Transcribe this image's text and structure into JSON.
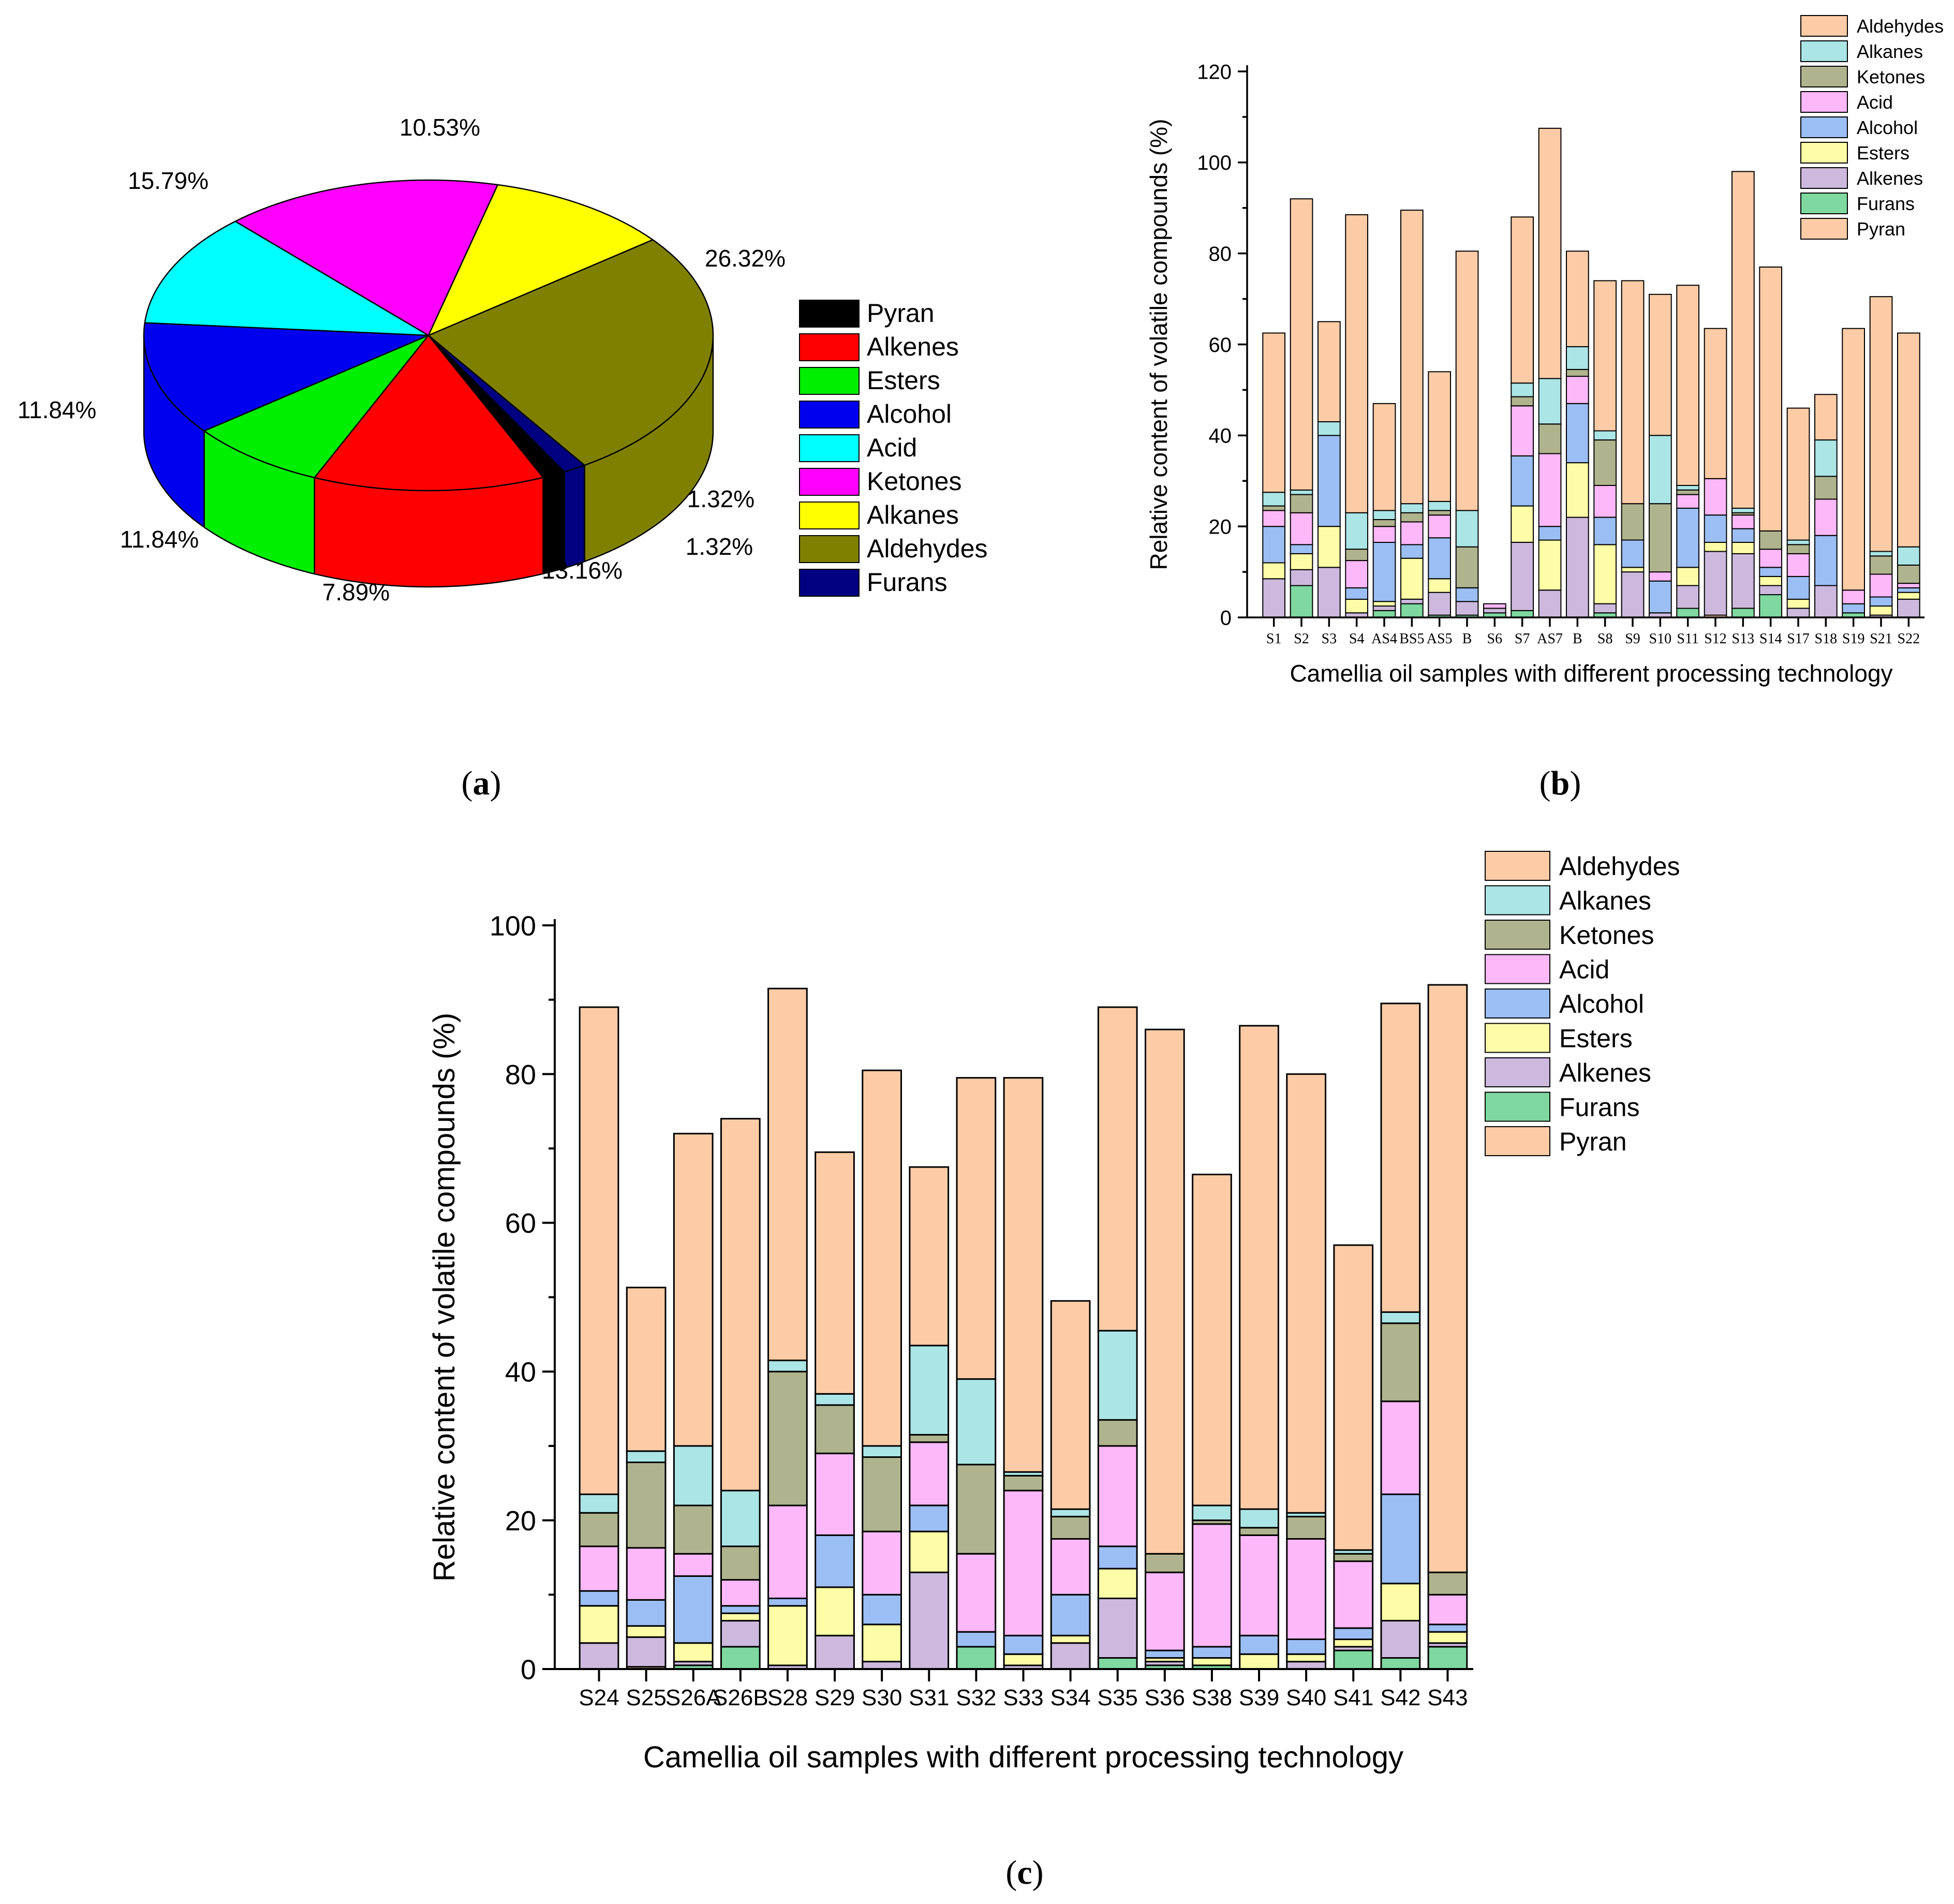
{
  "panels": {
    "a": "a",
    "b": "b",
    "c": "c"
  },
  "colors": {
    "pieA": {
      "Pyran": "#000000",
      "Alkenes": "#ff0000",
      "Esters": "#00ee00",
      "Alcohol": "#0000ee",
      "Acid": "#00ffff",
      "Ketones": "#ff00ff",
      "Alkanes": "#ffff00",
      "Aldehydes": "#808000",
      "Furans": "#000080"
    },
    "bars": {
      "Aldehydes": "#fdcca6",
      "Alkanes": "#abe5e6",
      "Ketones": "#b0b48e",
      "Acid": "#fcb8f8",
      "Alcohol": "#9bbef4",
      "Esters": "#fdfda8",
      "Alkenes": "#cdb9de",
      "Furans": "#7fd8a0",
      "Pyran": "#fdcca6"
    }
  },
  "chart_data": [
    {
      "id": "a",
      "type": "pie",
      "title": "",
      "categories": [
        "Aldehydes",
        "Furans",
        "Pyran",
        "Alkenes",
        "Esters",
        "Alcohol",
        "Acid",
        "Ketones",
        "Alkanes"
      ],
      "values": [
        26.32,
        1.32,
        1.32,
        13.16,
        7.89,
        11.84,
        11.84,
        15.79,
        10.53
      ],
      "labels": [
        "26.32%",
        "1.32%",
        "1.32%",
        "13.16%",
        "7.89%",
        "11.84%",
        "11.84%",
        "15.79%",
        "10.53%"
      ],
      "legend": [
        "Pyran",
        "Alkenes",
        "Esters",
        "Alcohol",
        "Acid",
        "Ketones",
        "Alkanes",
        "Aldehydes",
        "Furans"
      ],
      "legend_position": "right"
    },
    {
      "id": "b",
      "type": "bar",
      "stacked": true,
      "title": "",
      "xlabel": "Camellia oil samples with different processing technology",
      "ylabel": "Relative content of  volatile compounds (%)",
      "ylim": [
        0,
        120
      ],
      "yticks": [
        0,
        20,
        40,
        60,
        80,
        100,
        120
      ],
      "categories": [
        "S1",
        "S2",
        "S3",
        "S4",
        "AS4",
        "BS5",
        "AS5",
        "B",
        "S6",
        "S7",
        "AS7",
        "B",
        "S8",
        "S9",
        "S10",
        "S11",
        "S12",
        "S13",
        "S14",
        "S17",
        "S18",
        "S19",
        "S21",
        "S22"
      ],
      "legend": [
        "Aldehydes",
        "Alkanes",
        "Ketones",
        "Acid",
        "Alcohol",
        "Esters",
        "Alkenes",
        "Furans",
        "Pyran"
      ],
      "legend_position": "top-right",
      "series": [
        {
          "name": "Pyran",
          "values": [
            0,
            0,
            0,
            0,
            0,
            0,
            0,
            0,
            0,
            0,
            0,
            0,
            0,
            0,
            0,
            0,
            0.5,
            0,
            0,
            0,
            0,
            0,
            0,
            0
          ]
        },
        {
          "name": "Furans",
          "values": [
            0,
            7,
            0,
            0,
            1.5,
            3,
            0.5,
            0.5,
            1,
            1.5,
            0,
            0,
            1,
            0,
            0,
            2,
            0,
            2,
            5,
            0,
            0,
            1,
            0,
            0
          ]
        },
        {
          "name": "Alkenes",
          "values": [
            8.5,
            3.5,
            11,
            1,
            1,
            1,
            5,
            3,
            1,
            15,
            6,
            22,
            2,
            10,
            1,
            5,
            14,
            12,
            2,
            2,
            7,
            0,
            0.5,
            4
          ]
        },
        {
          "name": "Esters",
          "values": [
            3.5,
            3.5,
            9,
            3,
            1,
            9,
            3,
            0,
            0,
            8,
            11,
            12,
            13,
            1,
            0,
            4,
            2,
            2.5,
            2,
            2,
            0,
            0,
            2,
            1.5
          ]
        },
        {
          "name": "Alcohol",
          "values": [
            8,
            2,
            20,
            2.5,
            13,
            3,
            9,
            3,
            0,
            11,
            3,
            13,
            6,
            6,
            7,
            13,
            6,
            3,
            2,
            5,
            11,
            2,
            2,
            1
          ]
        },
        {
          "name": "Acid",
          "values": [
            3.5,
            7,
            0,
            6,
            3.5,
            5,
            5,
            0,
            1,
            11,
            16,
            6,
            7,
            0,
            2,
            3,
            8,
            3,
            4,
            5,
            8,
            3,
            5,
            1
          ]
        },
        {
          "name": "Ketones",
          "values": [
            1,
            4,
            0,
            2.5,
            1.5,
            2,
            1,
            9,
            0,
            2,
            6.5,
            1.5,
            10,
            8,
            15,
            1,
            0,
            0.5,
            4,
            2,
            5,
            0,
            4,
            4
          ]
        },
        {
          "name": "Alkanes",
          "values": [
            3,
            1,
            3,
            8,
            2,
            2,
            2,
            8,
            0,
            3,
            10,
            5,
            2,
            0,
            15,
            1,
            0,
            1,
            0,
            1,
            8,
            0,
            1,
            4
          ]
        },
        {
          "name": "Aldehydes",
          "values": [
            35,
            64,
            22,
            65.5,
            23.5,
            64.5,
            28.5,
            57,
            0,
            36.5,
            55,
            21,
            33,
            49,
            31,
            44,
            33,
            74,
            58,
            29,
            10,
            57.5,
            56,
            47
          ]
        }
      ]
    },
    {
      "id": "c",
      "type": "bar",
      "stacked": true,
      "title": "",
      "xlabel": "Camellia oil samples with different processing technology",
      "ylabel": "Relative content of  volatile compounds (%)",
      "ylim": [
        0,
        100
      ],
      "yticks": [
        0,
        20,
        40,
        60,
        80,
        100
      ],
      "categories": [
        "S24",
        "S25",
        "S26A",
        "S26B",
        "S28",
        "S29",
        "S30",
        "S31",
        "S32",
        "S33",
        "S34",
        "S35",
        "S36",
        "S38",
        "S39",
        "S40",
        "S41",
        "S42",
        "S43"
      ],
      "legend": [
        "Aldehydes",
        "Alkanes",
        "Ketones",
        "Acid",
        "Alcohol",
        "Esters",
        "Alkenes",
        "Furans",
        "Pyran"
      ],
      "legend_position": "top-right",
      "series": [
        {
          "name": "Pyran",
          "values": [
            0,
            0.3,
            0,
            0,
            0,
            0,
            0,
            0,
            0,
            0,
            0,
            0,
            0,
            0,
            0,
            0,
            0,
            0,
            0
          ]
        },
        {
          "name": "Furans",
          "values": [
            0,
            0,
            0.5,
            3,
            0,
            0,
            0,
            0,
            3,
            0,
            0,
            1.5,
            0.5,
            0.5,
            0,
            0,
            2.5,
            1.5,
            3
          ]
        },
        {
          "name": "Alkenes",
          "values": [
            3.5,
            4,
            0.5,
            3.5,
            0.5,
            4.5,
            1,
            13,
            0,
            0.5,
            3.5,
            8,
            0.5,
            0,
            0,
            1,
            0.5,
            5,
            0.5
          ]
        },
        {
          "name": "Esters",
          "values": [
            5,
            1.5,
            2.5,
            1,
            8,
            6.5,
            5,
            5.5,
            0,
            1.5,
            1,
            4,
            0.5,
            1,
            2,
            1,
            1,
            5,
            1.5
          ]
        },
        {
          "name": "Alcohol",
          "values": [
            2,
            3.5,
            9,
            1,
            1,
            7,
            4,
            3.5,
            2,
            2.5,
            5.5,
            3,
            1,
            1.5,
            2.5,
            2,
            1.5,
            12,
            1
          ]
        },
        {
          "name": "Acid",
          "values": [
            6,
            7,
            3,
            3.5,
            12.5,
            11,
            8.5,
            8.5,
            10.5,
            19.5,
            7.5,
            13.5,
            10.5,
            16.5,
            13.5,
            13.5,
            9,
            12.5,
            4
          ]
        },
        {
          "name": "Ketones",
          "values": [
            4.5,
            11.5,
            6.5,
            4.5,
            18,
            6.5,
            10,
            1,
            12,
            2,
            3,
            3.5,
            2.5,
            0.5,
            1,
            3,
            1,
            10.5,
            3
          ]
        },
        {
          "name": "Alkanes",
          "values": [
            2.5,
            1.5,
            8,
            7.5,
            1.5,
            1.5,
            1.5,
            12,
            11.5,
            0.5,
            1,
            12,
            0,
            2,
            2.5,
            0.5,
            0.5,
            1.5,
            0
          ]
        },
        {
          "name": "Aldehydes",
          "values": [
            65.5,
            22,
            42,
            50,
            50,
            32.5,
            50.5,
            24,
            40.5,
            53,
            28,
            43.5,
            70.5,
            44.5,
            65,
            59,
            41,
            41.5,
            79
          ]
        }
      ]
    }
  ]
}
